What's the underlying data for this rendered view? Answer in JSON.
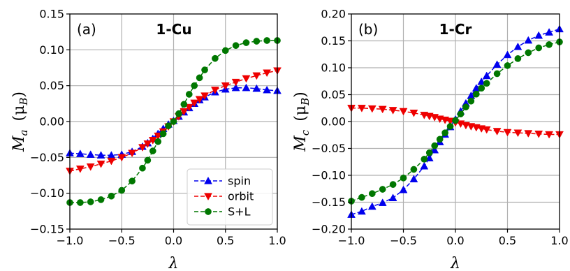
{
  "chart_data": [
    {
      "type": "line",
      "panel_tag": "(a)",
      "title": "1-Cu",
      "xlabel": "λ",
      "ylabel_main": "M",
      "ylabel_sub": "a",
      "ylabel_unit": "(μ",
      "ylabel_unit_sub": "B",
      "ylabel_unit_close": ")",
      "xlim": [
        -1.0,
        1.0
      ],
      "ylim": [
        -0.15,
        0.15
      ],
      "xticks": [
        "−1.0",
        "−0.5",
        "0.0",
        "0.5",
        "1.0"
      ],
      "xtick_values": [
        -1.0,
        -0.5,
        0.0,
        0.5,
        1.0
      ],
      "yticks": [
        "−0.15",
        "−0.10",
        "−0.05",
        "0.00",
        "0.05",
        "0.10",
        "0.15"
      ],
      "ytick_values": [
        -0.15,
        -0.1,
        -0.05,
        0.0,
        0.05,
        0.1,
        0.15
      ],
      "grid": true,
      "legend": {
        "position": "lower-right",
        "entries": [
          "spin",
          "orbit",
          "S+L"
        ]
      },
      "x": [
        -1.0,
        -0.9,
        -0.8,
        -0.7,
        -0.6,
        -0.5,
        -0.4,
        -0.3,
        -0.25,
        -0.2,
        -0.15,
        -0.1,
        -0.05,
        0.0,
        0.05,
        0.1,
        0.15,
        0.2,
        0.25,
        0.3,
        0.4,
        0.5,
        0.6,
        0.7,
        0.8,
        0.9,
        1.0
      ],
      "series": [
        {
          "name": "spin",
          "color": "#0000ee",
          "marker": "triangle-up",
          "values": [
            -0.044,
            -0.045,
            -0.046,
            -0.047,
            -0.047,
            -0.046,
            -0.042,
            -0.035,
            -0.03,
            -0.024,
            -0.017,
            -0.01,
            -0.004,
            0.001,
            0.007,
            0.013,
            0.019,
            0.025,
            0.03,
            0.034,
            0.041,
            0.045,
            0.047,
            0.047,
            0.046,
            0.044,
            0.043
          ]
        },
        {
          "name": "orbit",
          "color": "#ee0000",
          "marker": "triangle-down",
          "values": [
            -0.069,
            -0.066,
            -0.063,
            -0.059,
            -0.055,
            -0.05,
            -0.044,
            -0.036,
            -0.031,
            -0.026,
            -0.02,
            -0.014,
            -0.007,
            0.0,
            0.007,
            0.014,
            0.02,
            0.026,
            0.031,
            0.036,
            0.044,
            0.05,
            0.055,
            0.06,
            0.064,
            0.068,
            0.071
          ]
        },
        {
          "name": "S+L",
          "color": "#007700",
          "marker": "circle",
          "values": [
            -0.113,
            -0.113,
            -0.112,
            -0.109,
            -0.104,
            -0.096,
            -0.083,
            -0.065,
            -0.054,
            -0.041,
            -0.028,
            -0.017,
            -0.006,
            0.0,
            0.011,
            0.024,
            0.038,
            0.05,
            0.061,
            0.072,
            0.088,
            0.099,
            0.106,
            0.11,
            0.112,
            0.113,
            0.113
          ]
        }
      ]
    },
    {
      "type": "line",
      "panel_tag": "(b)",
      "title": "1-Cr",
      "xlabel": "λ",
      "ylabel_main": "M",
      "ylabel_sub": "c",
      "ylabel_unit": "(μ",
      "ylabel_unit_sub": "B",
      "ylabel_unit_close": ")",
      "xlim": [
        -1.0,
        1.0
      ],
      "ylim": [
        -0.2,
        0.2
      ],
      "xticks": [
        "−1.0",
        "−0.5",
        "0.0",
        "0.5",
        "1.0"
      ],
      "xtick_values": [
        -1.0,
        -0.5,
        0.0,
        0.5,
        1.0
      ],
      "yticks": [
        "−0.20",
        "−0.15",
        "−0.10",
        "−0.05",
        "0.00",
        "0.05",
        "0.10",
        "0.15",
        "0.20"
      ],
      "ytick_values": [
        -0.2,
        -0.15,
        -0.1,
        -0.05,
        0.0,
        0.05,
        0.1,
        0.15,
        0.2
      ],
      "grid": true,
      "x": [
        -1.0,
        -0.9,
        -0.8,
        -0.7,
        -0.6,
        -0.5,
        -0.4,
        -0.3,
        -0.25,
        -0.2,
        -0.15,
        -0.1,
        -0.05,
        0.0,
        0.05,
        0.1,
        0.15,
        0.2,
        0.25,
        0.3,
        0.4,
        0.5,
        0.6,
        0.7,
        0.8,
        0.9,
        1.0
      ],
      "series": [
        {
          "name": "spin",
          "color": "#0000ee",
          "marker": "triangle-up",
          "values": [
            -0.173,
            -0.167,
            -0.158,
            -0.151,
            -0.142,
            -0.127,
            -0.107,
            -0.083,
            -0.068,
            -0.053,
            -0.038,
            -0.024,
            -0.01,
            0.004,
            0.019,
            0.034,
            0.048,
            0.062,
            0.074,
            0.085,
            0.106,
            0.124,
            0.139,
            0.151,
            0.16,
            0.166,
            0.172
          ]
        },
        {
          "name": "orbit",
          "color": "#ee0000",
          "marker": "triangle-down",
          "values": [
            0.025,
            0.025,
            0.024,
            0.023,
            0.021,
            0.019,
            0.016,
            0.012,
            0.01,
            0.008,
            0.005,
            0.003,
            0.001,
            -0.002,
            -0.004,
            -0.007,
            -0.009,
            -0.011,
            -0.013,
            -0.015,
            -0.018,
            -0.02,
            -0.021,
            -0.022,
            -0.023,
            -0.024,
            -0.024
          ]
        },
        {
          "name": "S+L",
          "color": "#007700",
          "marker": "circle",
          "values": [
            -0.148,
            -0.141,
            -0.134,
            -0.126,
            -0.117,
            -0.105,
            -0.089,
            -0.07,
            -0.058,
            -0.045,
            -0.033,
            -0.021,
            -0.009,
            0.002,
            0.014,
            0.027,
            0.038,
            0.051,
            0.062,
            0.071,
            0.089,
            0.104,
            0.117,
            0.128,
            0.137,
            0.143,
            0.148
          ]
        }
      ]
    }
  ]
}
